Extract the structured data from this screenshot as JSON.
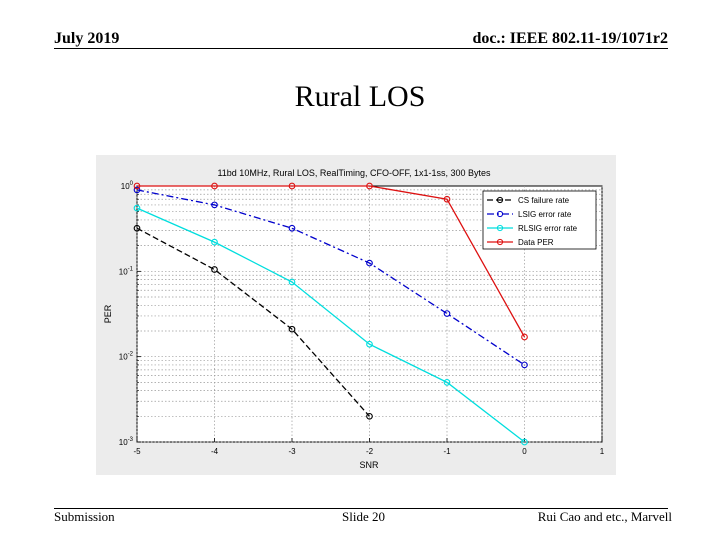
{
  "header": {
    "date": "July 2019",
    "doc": "doc.: IEEE 802.11-19/1071r2"
  },
  "slide": {
    "title": "Rural LOS"
  },
  "footer": {
    "left": "Submission",
    "center": "Slide 20",
    "right": "Rui Cao and etc., Marvell"
  },
  "chart_data": {
    "type": "line",
    "title": "11bd 10MHz, Rural LOS, RealTiming, CFO-OFF, 1x1-1ss, 300 Bytes",
    "xlabel": "SNR",
    "ylabel": "PER",
    "xlim": [
      -5,
      1
    ],
    "ylim": [
      0.001,
      1
    ],
    "yscale": "log",
    "xticks": [
      -5,
      -4,
      -3,
      -2,
      -1,
      0,
      1
    ],
    "yticks": [
      {
        "base": "10",
        "exp": "0",
        "value": 1
      },
      {
        "base": "10",
        "exp": "-1",
        "value": 0.1
      },
      {
        "base": "10",
        "exp": "-2",
        "value": 0.01
      },
      {
        "base": "10",
        "exp": "-3",
        "value": 0.001
      }
    ],
    "grid": true,
    "legend_position": "top-right",
    "series": [
      {
        "name": "CS failure rate",
        "color": "#000000",
        "dash": "dashed",
        "x": [
          -5,
          -4,
          -3,
          -2
        ],
        "y": [
          0.32,
          0.105,
          0.021,
          0.002
        ]
      },
      {
        "name": "LSIG error rate",
        "color": "#0000cc",
        "dash": "dashdot",
        "x": [
          -5,
          -4,
          -3,
          -2,
          -1,
          0
        ],
        "y": [
          0.9,
          0.6,
          0.32,
          0.125,
          0.032,
          0.008
        ]
      },
      {
        "name": "RLSIG error rate",
        "color": "#00dede",
        "dash": "solid",
        "x": [
          -5,
          -4,
          -3,
          -2,
          -1,
          0
        ],
        "y": [
          0.55,
          0.22,
          0.075,
          0.014,
          0.005,
          0.001
        ]
      },
      {
        "name": "Data PER",
        "color": "#dd1111",
        "dash": "solid",
        "x": [
          -5,
          -4,
          -3,
          -2,
          -1,
          0
        ],
        "y": [
          1.0,
          1.0,
          1.0,
          1.0,
          0.7,
          0.017
        ]
      }
    ]
  }
}
